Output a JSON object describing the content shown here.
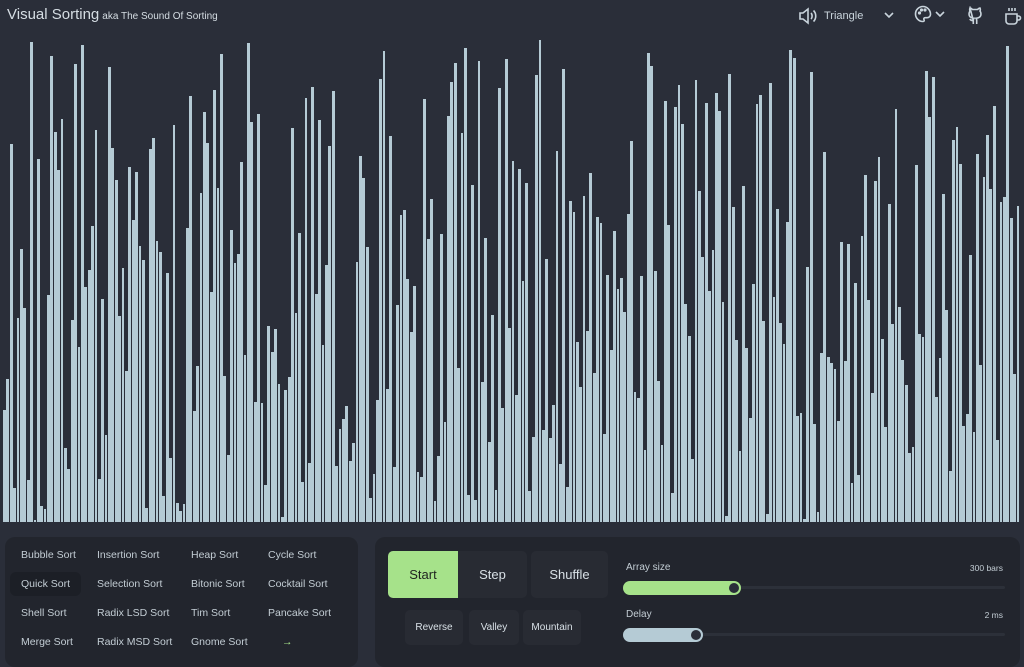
{
  "header": {
    "title": "Visual Sorting",
    "subtitle": "aka The Sound Of Sorting",
    "sound_wave": "Triangle",
    "icons": [
      "speaker-icon",
      "chevron-down-icon",
      "palette-icon",
      "github-icon",
      "coffee-icon"
    ]
  },
  "visualizer": {
    "array_size": 300,
    "bar_color": "#b5cbd5",
    "background": "#2a2e39"
  },
  "algorithms": [
    [
      "Bubble Sort",
      "Insertion Sort",
      "Heap Sort",
      "Cycle Sort"
    ],
    [
      "Quick Sort",
      "Selection Sort",
      "Bitonic Sort",
      "Cocktail Sort"
    ],
    [
      "Shell Sort",
      "Radix LSD Sort",
      "Tim Sort",
      "Pancake Sort"
    ],
    [
      "Merge Sort",
      "Radix MSD Sort",
      "Gnome Sort",
      "→"
    ]
  ],
  "selected_algorithm": "Quick Sort",
  "controls": {
    "start": "Start",
    "step": "Step",
    "shuffle": "Shuffle",
    "reverse": "Reverse",
    "valley": "Valley",
    "mountain": "Mountain",
    "accent": "#a6e28a"
  },
  "sliders": {
    "array_size": {
      "label": "Array size",
      "value": "300 bars",
      "fill_percent": 31
    },
    "delay": {
      "label": "Delay",
      "value": "2 ms",
      "fill_percent": 21
    }
  }
}
